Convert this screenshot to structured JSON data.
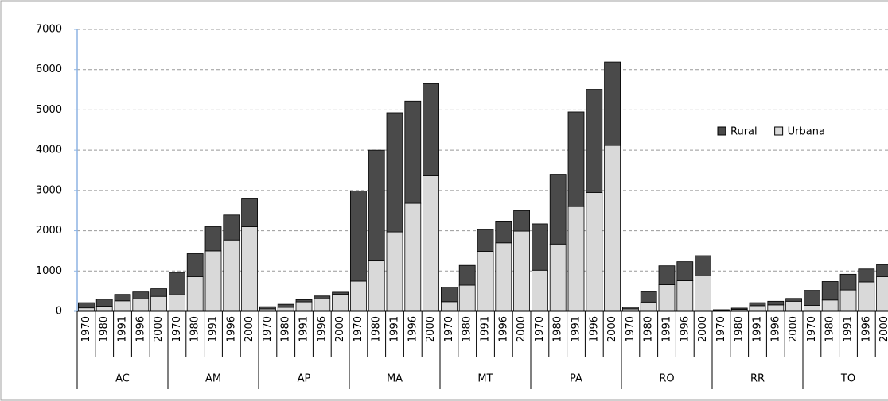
{
  "chart_data": {
    "type": "stacked_bar",
    "groups": [
      "AC",
      "AM",
      "AP",
      "MA",
      "MT",
      "PA",
      "RO",
      "RR",
      "TO"
    ],
    "categories": [
      "1970",
      "1980",
      "1991",
      "1996",
      "2000",
      "1970",
      "1980",
      "1991",
      "1996",
      "2000",
      "1970",
      "1980",
      "1991",
      "1996",
      "2000",
      "1970",
      "1980",
      "1991",
      "1996",
      "2000",
      "1970",
      "1980",
      "1991",
      "1996",
      "2000",
      "1970",
      "1980",
      "1991",
      "1996",
      "2000",
      "1970",
      "1980",
      "1991",
      "1996",
      "2000",
      "1970",
      "1980",
      "1991",
      "1996",
      "2000",
      "1970",
      "1980",
      "1991",
      "1996",
      "2000"
    ],
    "series": [
      {
        "name": "Rural",
        "color": "#4a4a4a",
        "values": [
          130,
          170,
          160,
          170,
          190,
          545,
          570,
          600,
          620,
          710,
          55,
          75,
          55,
          70,
          55,
          2240,
          2750,
          2960,
          2540,
          2290,
          360,
          490,
          540,
          540,
          510,
          1150,
          1730,
          2350,
          2560,
          2070,
          50,
          260,
          470,
          470,
          500,
          20,
          30,
          75,
          90,
          70,
          370,
          460,
          390,
          320,
          300
        ]
      },
      {
        "name": "Urbana",
        "color": "#d9d9d9",
        "values": [
          85,
          130,
          260,
          310,
          370,
          410,
          860,
          1500,
          1770,
          2100,
          60,
          100,
          235,
          310,
          420,
          750,
          1250,
          1970,
          2680,
          3360,
          240,
          650,
          1490,
          1700,
          1990,
          1020,
          1670,
          2600,
          2950,
          4120,
          60,
          230,
          660,
          760,
          880,
          20,
          50,
          140,
          160,
          250,
          150,
          280,
          530,
          730,
          860
        ]
      }
    ],
    "ylim": [
      0,
      7000
    ],
    "yticks": [
      0,
      1000,
      2000,
      3000,
      4000,
      5000,
      6000,
      7000
    ],
    "grid": true
  }
}
